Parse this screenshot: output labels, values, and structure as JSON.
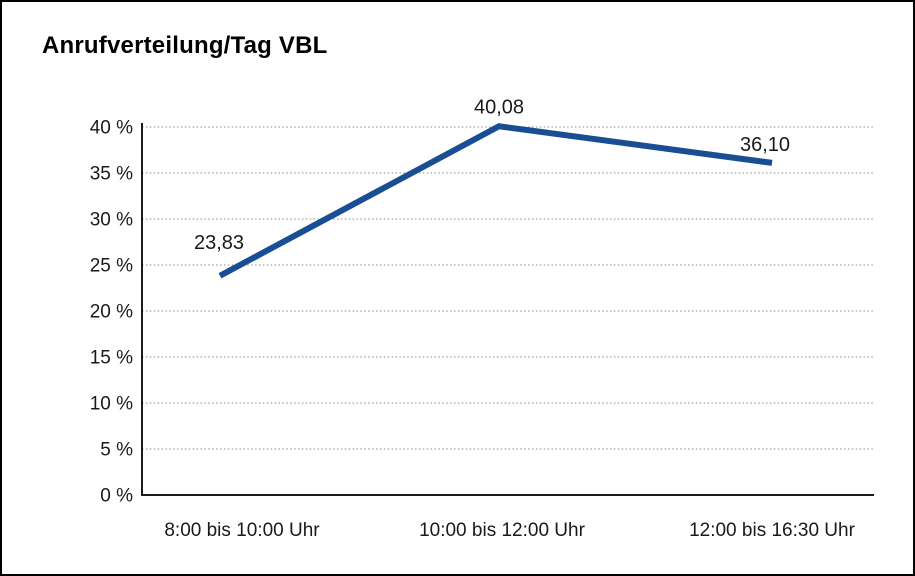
{
  "chart_data": {
    "type": "line",
    "title": "Anrufverteilung/Tag VBL",
    "categories": [
      "8:00 bis 10:00 Uhr",
      "10:00 bis 12:00 Uhr",
      "12:00 bis 16:30 Uhr"
    ],
    "values": [
      23.83,
      40.08,
      36.1
    ],
    "value_labels": [
      "23,83",
      "40,08",
      "36,10"
    ],
    "y_ticks": [
      0,
      5,
      10,
      15,
      20,
      25,
      30,
      35,
      40
    ],
    "y_tick_labels": [
      "0 %",
      "5 %",
      "10 %",
      "15 %",
      "20 %",
      "25 %",
      "30 %",
      "35 %",
      "40 %"
    ],
    "ylim": [
      0,
      40
    ],
    "xlabel": "",
    "ylabel": "",
    "legend": "none",
    "grid": "horizontal-dotted",
    "colors": {
      "line": "#1a4e94",
      "grid": "#8a8a8a",
      "axis": "#1c1c1c",
      "text": "#1a1a1a",
      "background": "#ffffff",
      "border": "#000000"
    }
  }
}
